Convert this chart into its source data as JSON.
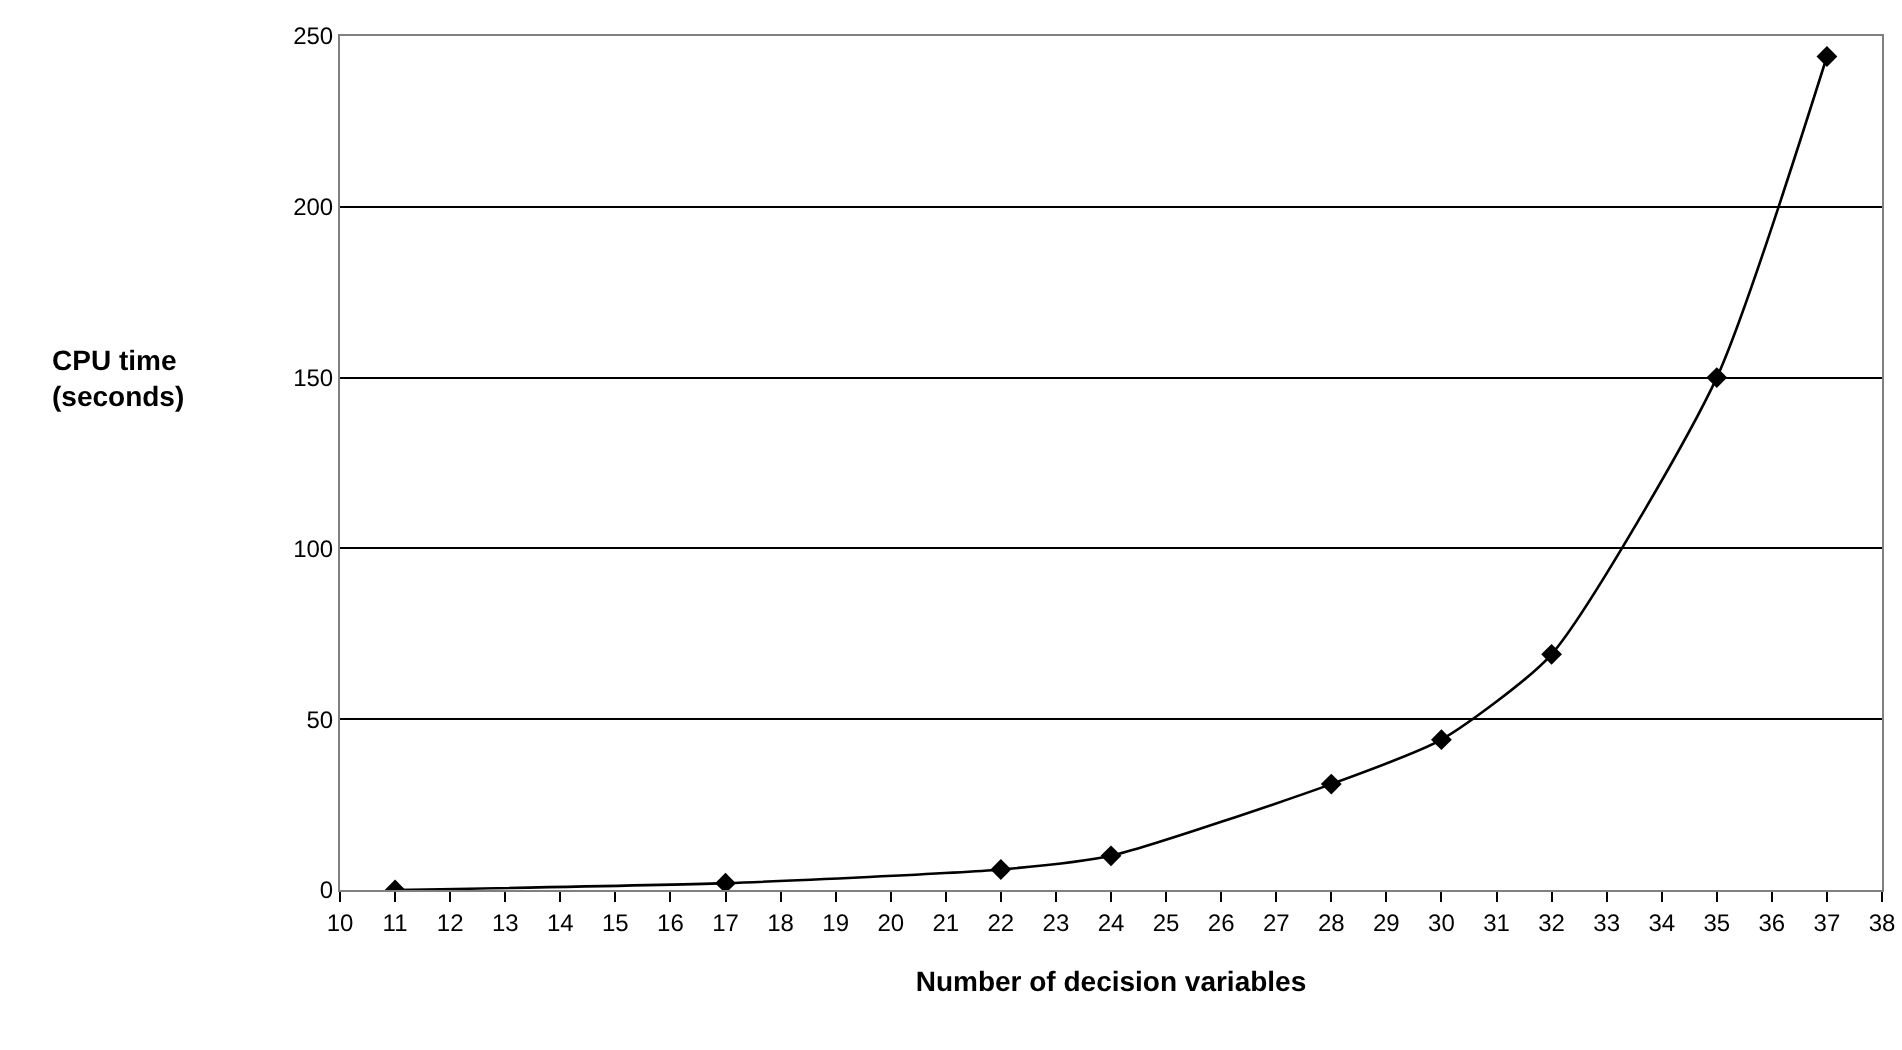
{
  "chart_data": {
    "type": "line",
    "xlabel": "Number of decision variables",
    "ylabel": "CPU time\n(seconds)",
    "x": [
      11,
      17,
      22,
      24,
      28,
      30,
      32,
      35,
      37
    ],
    "series": [
      {
        "color": "#000000",
        "values": [
          0,
          2,
          6,
          10,
          31,
          44,
          69,
          150,
          244
        ]
      }
    ],
    "xlim": [
      10,
      38
    ],
    "xticks": [
      10,
      11,
      12,
      13,
      14,
      15,
      16,
      17,
      18,
      19,
      20,
      21,
      22,
      23,
      24,
      25,
      26,
      27,
      28,
      29,
      30,
      31,
      32,
      33,
      34,
      35,
      36,
      37,
      38
    ],
    "ylim": [
      0,
      250
    ],
    "yticks": [
      0,
      50,
      100,
      150,
      200,
      250
    ],
    "grid": "y",
    "marker": "diamond",
    "line_style": "solid"
  }
}
